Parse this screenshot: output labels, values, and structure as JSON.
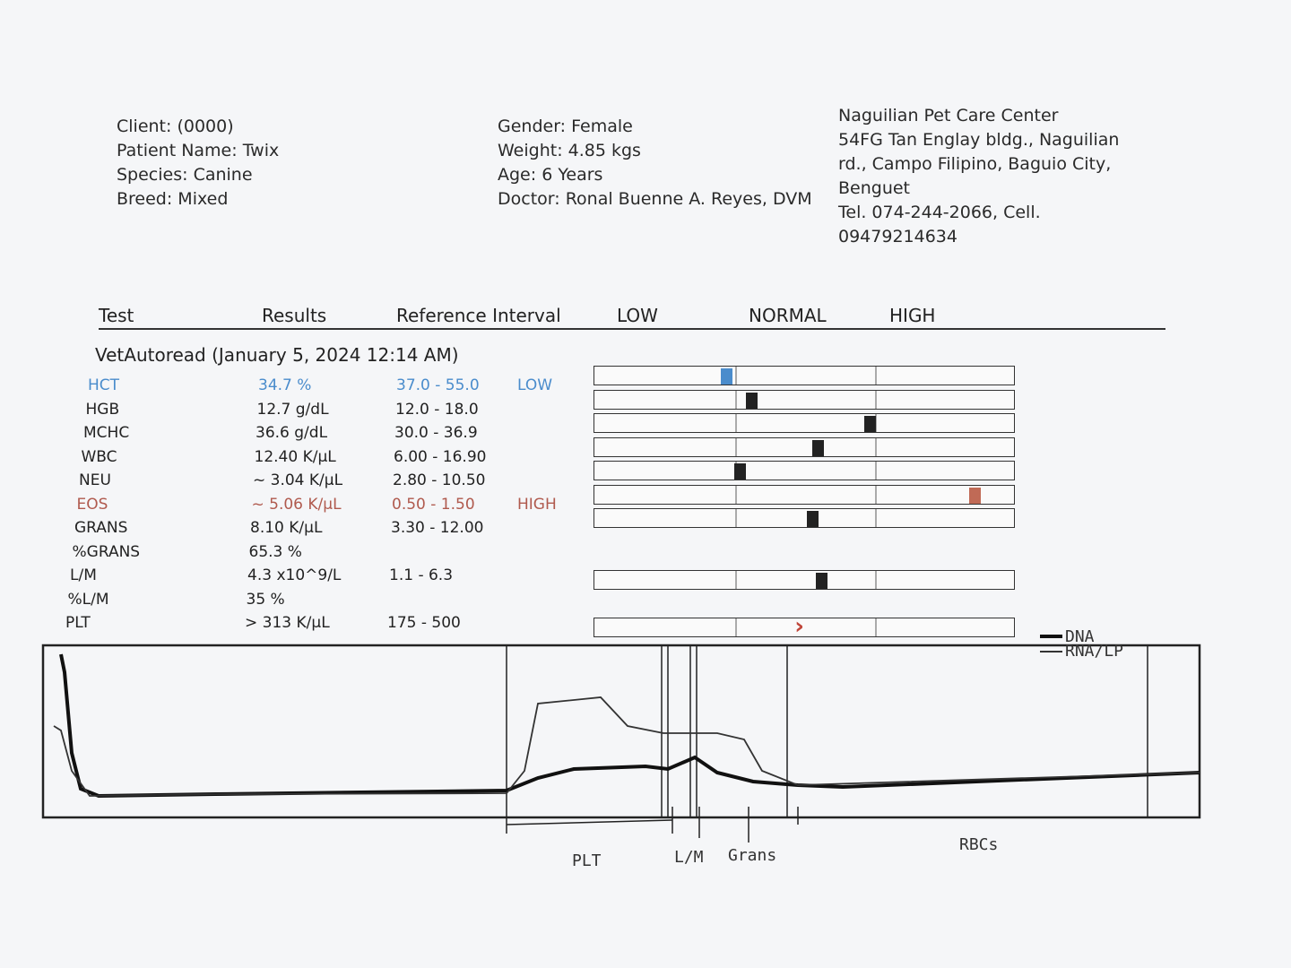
{
  "client": [
    "Client:  (0000)",
    "Patient Name: Twix",
    "Species: Canine",
    "Breed: Mixed"
  ],
  "patient": [
    "Gender: Female",
    "Weight: 4.85 kgs",
    "Age: 6 Years",
    "Doctor: Ronal Buenne A. Reyes, DVM"
  ],
  "clinic": [
    "Naguilian Pet Care Center",
    "54FG Tan Englay bldg., Naguilian rd., Campo Filipino, Baguio City, Benguet",
    "Tel. 074-244-2066, Cell. 09479214634"
  ],
  "table": {
    "headers": [
      "Test",
      "Results",
      "Reference Interval",
      "LOW",
      "NORMAL",
      "HIGH"
    ],
    "section": "VetAutoread (January 5, 2024 12:14 AM)",
    "rows": [
      {
        "test": "HCT",
        "result": "34.7 %",
        "range": "37.0 - 55.0",
        "flag": "LOW"
      },
      {
        "test": "HGB",
        "result": "12.7 g/dL",
        "range": "12.0 - 18.0"
      },
      {
        "test": "MCHC",
        "result": "36.6 g/dL",
        "range": "30.0 - 36.9"
      },
      {
        "test": "WBC",
        "result": "12.40 K/µL",
        "range": "6.00 - 16.90"
      },
      {
        "test": "NEU",
        "result": "~ 3.04 K/µL",
        "range": "2.80 - 10.50"
      },
      {
        "test": "EOS",
        "result": "~ 5.06 K/µL",
        "range": "0.50 - 1.50",
        "flag": "HIGH"
      },
      {
        "test": "GRANS",
        "result": "8.10 K/µL",
        "range": "3.30 - 12.00"
      },
      {
        "test": "%GRANS",
        "result": "65.3 %"
      },
      {
        "test": "L/M",
        "result": "4.3 x10^9/L",
        "range": "1.1 - 6.3"
      },
      {
        "test": "%L/M",
        "result": "35 %"
      },
      {
        "test": "PLT",
        "result": "> 313 K/µL",
        "range": "175 - 500"
      }
    ]
  },
  "histogram": {
    "legend": [
      "DNA",
      "RNA/LP"
    ],
    "labels": [
      "PLT",
      "L/M",
      "Grans",
      "RBCs"
    ]
  }
}
